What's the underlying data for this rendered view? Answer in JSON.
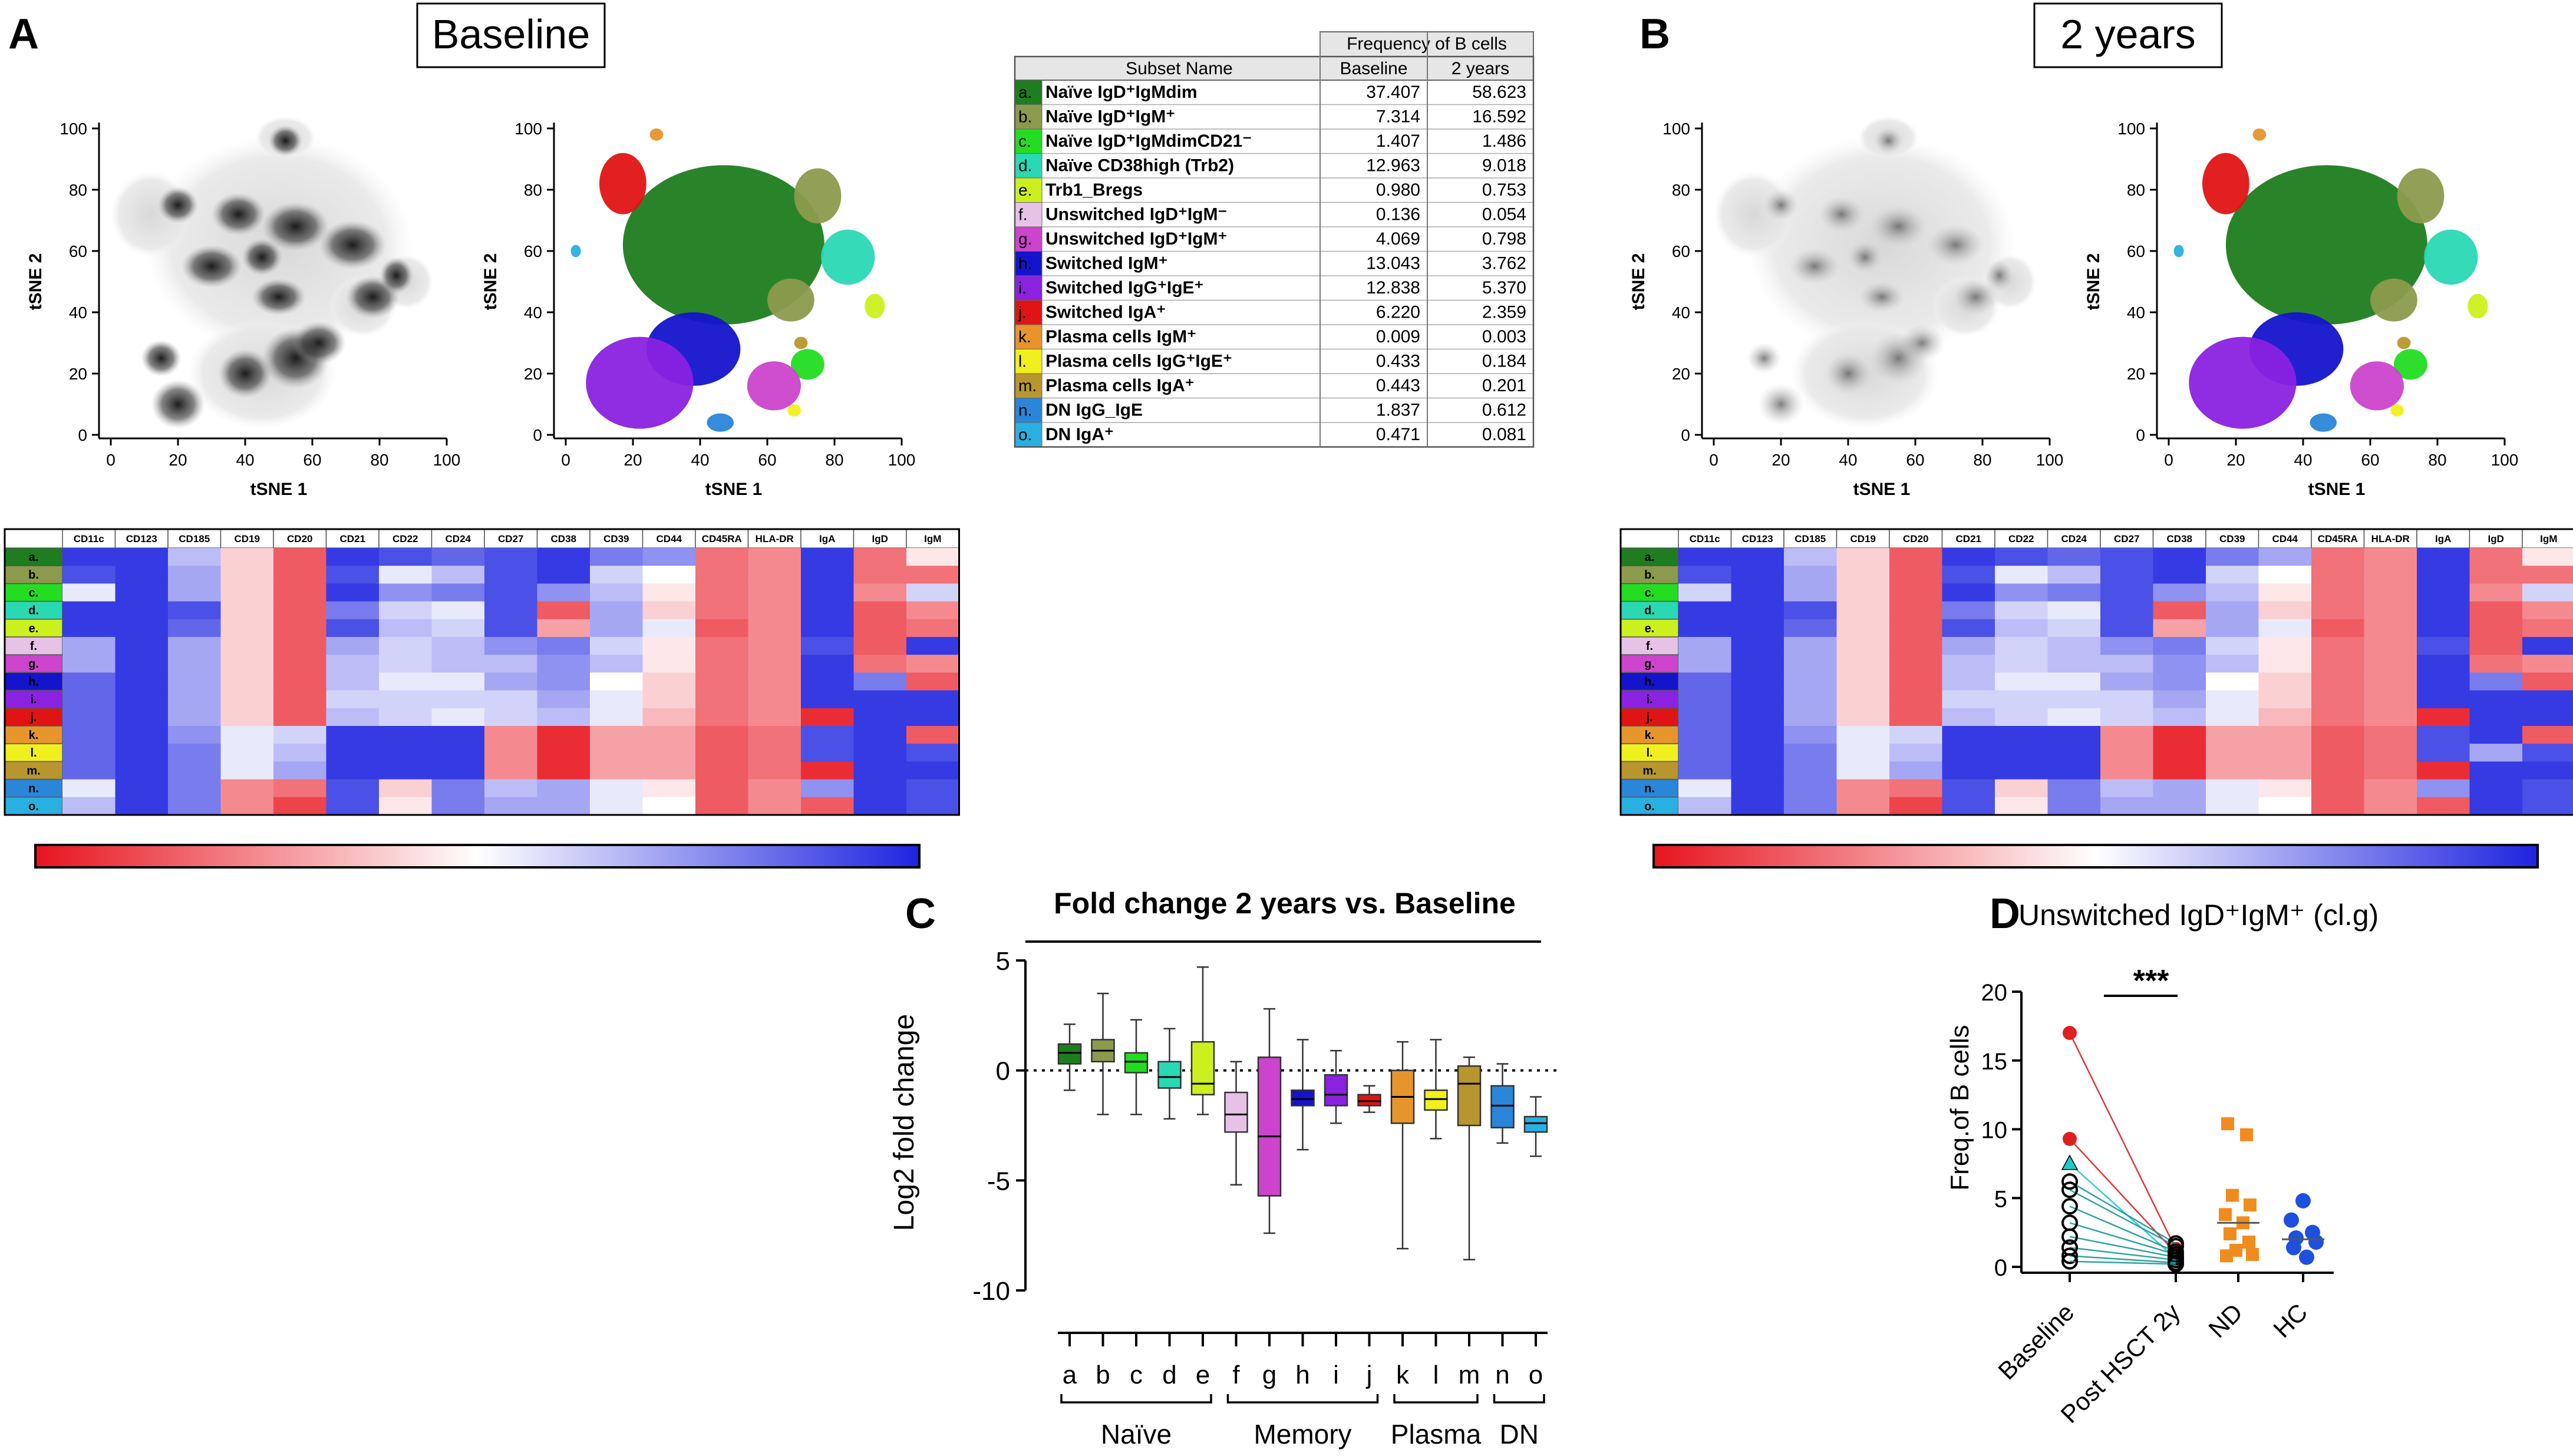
{
  "panels": {
    "A": {
      "letter": "A",
      "title": "Baseline"
    },
    "B": {
      "letter": "B",
      "title": "2 years"
    },
    "C": {
      "letter": "C"
    },
    "D": {
      "letter": "D"
    }
  },
  "tsne": {
    "xlabel": "tSNE 1",
    "ylabel": "tSNE 2",
    "ticks": [
      "0",
      "20",
      "40",
      "60",
      "80",
      "100"
    ]
  },
  "freq_table": {
    "group_header": "Frequency of B cells",
    "col_subset": "Subset Name",
    "col_baseline": "Baseline",
    "col_2y": "2 years",
    "rows": [
      {
        "code": "a.",
        "name": "Naïve IgD⁺IgMdim",
        "baseline": "37.407",
        "y2": "58.623",
        "color": "#1e7d1e"
      },
      {
        "code": "b.",
        "name": "Naïve IgD⁺IgM⁺",
        "baseline": "7.314",
        "y2": "16.592",
        "color": "#8c9a4d"
      },
      {
        "code": "c.",
        "name": "Naïve IgD⁺IgMdimCD21⁻",
        "baseline": "1.407",
        "y2": "1.486",
        "color": "#22dd22"
      },
      {
        "code": "d.",
        "name": "Naïve CD38high (Trb2)",
        "baseline": "12.963",
        "y2": "9.018",
        "color": "#2ad8b4"
      },
      {
        "code": "e.",
        "name": "Trb1_Bregs",
        "baseline": "0.980",
        "y2": "0.753",
        "color": "#ccf01e"
      },
      {
        "code": "f.",
        "name": "Unswitched IgD⁺IgM⁻",
        "baseline": "0.136",
        "y2": "0.054",
        "color": "#e6c2e6"
      },
      {
        "code": "g.",
        "name": "Unswitched IgD⁺IgM⁺",
        "baseline": "4.069",
        "y2": "0.798",
        "color": "#cc44cc"
      },
      {
        "code": "h.",
        "name": "Switched IgM⁺",
        "baseline": "13.043",
        "y2": "3.762",
        "color": "#1414cc"
      },
      {
        "code": "i.",
        "name": "Switched IgG⁺IgE⁺",
        "baseline": "12.838",
        "y2": "5.370",
        "color": "#8a22e0"
      },
      {
        "code": "j.",
        "name": "Switched IgA⁺",
        "baseline": "6.220",
        "y2": "2.359",
        "color": "#e01414"
      },
      {
        "code": "k.",
        "name": "Plasma cells IgM⁺",
        "baseline": "0.009",
        "y2": "0.003",
        "color": "#e6952a"
      },
      {
        "code": "l.",
        "name": "Plasma cells IgG⁺IgE⁺",
        "baseline": "0.433",
        "y2": "0.184",
        "color": "#f0f01e"
      },
      {
        "code": "m.",
        "name": "Plasma cells IgA⁺",
        "baseline": "0.443",
        "y2": "0.201",
        "color": "#b8962e"
      },
      {
        "code": "n.",
        "name": "DN IgG_IgE",
        "baseline": "1.837",
        "y2": "0.612",
        "color": "#2a86d8"
      },
      {
        "code": "o.",
        "name": "DN IgA⁺",
        "baseline": "0.471",
        "y2": "0.081",
        "color": "#2ab0e0"
      }
    ]
  },
  "heatmap": {
    "markers": [
      "CD11c",
      "CD123",
      "CD185",
      "CD19",
      "CD20",
      "CD21",
      "CD22",
      "CD24",
      "CD27",
      "CD38",
      "CD39",
      "CD44",
      "CD45RA",
      "HLA-DR",
      "IgA",
      "IgD",
      "IgM"
    ],
    "scale_note": "expression color scale red (high) to blue (low)",
    "baseline_values": [
      [
        0.05,
        0.05,
        0.35,
        0.6,
        0.85,
        0.05,
        0.1,
        0.15,
        0.1,
        0.05,
        0.2,
        0.25,
        0.8,
        0.75,
        0.05,
        0.8,
        0.55
      ],
      [
        0.1,
        0.05,
        0.3,
        0.6,
        0.85,
        0.1,
        0.45,
        0.35,
        0.1,
        0.05,
        0.4,
        0.5,
        0.8,
        0.75,
        0.05,
        0.8,
        0.8
      ],
      [
        0.45,
        0.05,
        0.3,
        0.6,
        0.85,
        0.05,
        0.25,
        0.2,
        0.1,
        0.25,
        0.35,
        0.55,
        0.8,
        0.75,
        0.05,
        0.75,
        0.4
      ],
      [
        0.05,
        0.05,
        0.1,
        0.6,
        0.85,
        0.2,
        0.4,
        0.45,
        0.1,
        0.85,
        0.3,
        0.6,
        0.8,
        0.75,
        0.05,
        0.85,
        0.75
      ],
      [
        0.05,
        0.05,
        0.15,
        0.6,
        0.85,
        0.1,
        0.35,
        0.4,
        0.1,
        0.7,
        0.3,
        0.45,
        0.85,
        0.75,
        0.05,
        0.85,
        0.8
      ],
      [
        0.3,
        0.05,
        0.3,
        0.6,
        0.85,
        0.3,
        0.4,
        0.35,
        0.25,
        0.2,
        0.4,
        0.55,
        0.8,
        0.75,
        0.1,
        0.85,
        0.05
      ],
      [
        0.3,
        0.05,
        0.3,
        0.6,
        0.85,
        0.35,
        0.4,
        0.35,
        0.35,
        0.25,
        0.35,
        0.55,
        0.8,
        0.75,
        0.05,
        0.8,
        0.75
      ],
      [
        0.15,
        0.05,
        0.3,
        0.6,
        0.85,
        0.35,
        0.45,
        0.45,
        0.3,
        0.25,
        0.5,
        0.6,
        0.8,
        0.75,
        0.05,
        0.2,
        0.85
      ],
      [
        0.15,
        0.05,
        0.3,
        0.6,
        0.85,
        0.4,
        0.4,
        0.4,
        0.4,
        0.3,
        0.45,
        0.6,
        0.8,
        0.75,
        0.05,
        0.05,
        0.05
      ],
      [
        0.15,
        0.05,
        0.3,
        0.6,
        0.85,
        0.35,
        0.4,
        0.45,
        0.4,
        0.35,
        0.45,
        0.65,
        0.8,
        0.75,
        0.95,
        0.05,
        0.05
      ],
      [
        0.15,
        0.05,
        0.25,
        0.45,
        0.4,
        0.05,
        0.05,
        0.05,
        0.75,
        0.95,
        0.7,
        0.7,
        0.85,
        0.8,
        0.1,
        0.05,
        0.85
      ],
      [
        0.15,
        0.05,
        0.2,
        0.45,
        0.35,
        0.05,
        0.05,
        0.05,
        0.75,
        0.95,
        0.7,
        0.7,
        0.85,
        0.8,
        0.1,
        0.05,
        0.1
      ],
      [
        0.15,
        0.05,
        0.2,
        0.45,
        0.3,
        0.05,
        0.05,
        0.05,
        0.75,
        0.95,
        0.7,
        0.7,
        0.85,
        0.8,
        0.95,
        0.05,
        0.05
      ],
      [
        0.45,
        0.05,
        0.2,
        0.75,
        0.8,
        0.1,
        0.6,
        0.2,
        0.35,
        0.3,
        0.45,
        0.55,
        0.85,
        0.75,
        0.25,
        0.05,
        0.1
      ],
      [
        0.35,
        0.05,
        0.2,
        0.75,
        0.9,
        0.1,
        0.55,
        0.2,
        0.3,
        0.3,
        0.45,
        0.5,
        0.85,
        0.75,
        0.85,
        0.05,
        0.1
      ]
    ],
    "year2_values": [
      [
        0.05,
        0.05,
        0.35,
        0.6,
        0.85,
        0.05,
        0.1,
        0.15,
        0.1,
        0.05,
        0.2,
        0.3,
        0.8,
        0.75,
        0.05,
        0.8,
        0.55
      ],
      [
        0.1,
        0.05,
        0.3,
        0.6,
        0.85,
        0.1,
        0.45,
        0.35,
        0.1,
        0.05,
        0.4,
        0.5,
        0.8,
        0.75,
        0.05,
        0.8,
        0.8
      ],
      [
        0.4,
        0.05,
        0.3,
        0.6,
        0.85,
        0.05,
        0.25,
        0.2,
        0.1,
        0.25,
        0.35,
        0.55,
        0.8,
        0.75,
        0.05,
        0.75,
        0.4
      ],
      [
        0.05,
        0.05,
        0.1,
        0.6,
        0.85,
        0.2,
        0.4,
        0.45,
        0.1,
        0.85,
        0.3,
        0.6,
        0.8,
        0.75,
        0.05,
        0.85,
        0.75
      ],
      [
        0.05,
        0.05,
        0.15,
        0.6,
        0.85,
        0.1,
        0.35,
        0.4,
        0.1,
        0.7,
        0.3,
        0.45,
        0.85,
        0.75,
        0.05,
        0.85,
        0.8
      ],
      [
        0.3,
        0.05,
        0.3,
        0.6,
        0.85,
        0.3,
        0.4,
        0.35,
        0.25,
        0.2,
        0.4,
        0.55,
        0.8,
        0.75,
        0.1,
        0.85,
        0.05
      ],
      [
        0.3,
        0.05,
        0.3,
        0.6,
        0.85,
        0.35,
        0.4,
        0.35,
        0.35,
        0.25,
        0.35,
        0.55,
        0.8,
        0.75,
        0.05,
        0.8,
        0.75
      ],
      [
        0.15,
        0.05,
        0.3,
        0.6,
        0.85,
        0.35,
        0.45,
        0.45,
        0.3,
        0.25,
        0.5,
        0.6,
        0.8,
        0.75,
        0.05,
        0.2,
        0.85
      ],
      [
        0.15,
        0.05,
        0.3,
        0.6,
        0.85,
        0.4,
        0.4,
        0.4,
        0.4,
        0.3,
        0.45,
        0.6,
        0.8,
        0.75,
        0.05,
        0.05,
        0.05
      ],
      [
        0.15,
        0.05,
        0.3,
        0.6,
        0.85,
        0.35,
        0.4,
        0.45,
        0.4,
        0.35,
        0.45,
        0.65,
        0.8,
        0.75,
        0.95,
        0.05,
        0.05
      ],
      [
        0.15,
        0.05,
        0.25,
        0.45,
        0.4,
        0.05,
        0.05,
        0.05,
        0.75,
        0.95,
        0.7,
        0.7,
        0.85,
        0.8,
        0.1,
        0.05,
        0.85
      ],
      [
        0.15,
        0.05,
        0.2,
        0.45,
        0.35,
        0.05,
        0.05,
        0.05,
        0.75,
        0.95,
        0.7,
        0.7,
        0.85,
        0.8,
        0.1,
        0.3,
        0.1
      ],
      [
        0.15,
        0.05,
        0.2,
        0.45,
        0.3,
        0.05,
        0.05,
        0.05,
        0.75,
        0.95,
        0.7,
        0.7,
        0.85,
        0.8,
        0.95,
        0.05,
        0.05
      ],
      [
        0.45,
        0.05,
        0.2,
        0.75,
        0.8,
        0.1,
        0.6,
        0.2,
        0.35,
        0.3,
        0.45,
        0.55,
        0.85,
        0.75,
        0.25,
        0.05,
        0.1
      ],
      [
        0.35,
        0.05,
        0.2,
        0.75,
        0.9,
        0.1,
        0.55,
        0.2,
        0.3,
        0.3,
        0.45,
        0.5,
        0.85,
        0.75,
        0.85,
        0.05,
        0.1
      ]
    ]
  },
  "chart_data": [
    {
      "type": "box",
      "title": "Fold change 2 years vs. Baseline",
      "ylabel": "Log2 fold change",
      "ylim": [
        -10,
        5
      ],
      "yticks": [
        5,
        0,
        -5,
        -10
      ],
      "reference_line": 0,
      "categories": [
        "a",
        "b",
        "c",
        "d",
        "e",
        "f",
        "g",
        "h",
        "i",
        "j",
        "k",
        "l",
        "m",
        "n",
        "o"
      ],
      "groups": [
        {
          "name": "Naïve",
          "from": 0,
          "to": 4
        },
        {
          "name": "Memory",
          "from": 5,
          "to": 9
        },
        {
          "name": "Plasma",
          "from": 10,
          "to": 12
        },
        {
          "name": "DN",
          "from": 13,
          "to": 14
        }
      ],
      "boxes": [
        {
          "cat": "a",
          "min": -0.9,
          "q1": 0.3,
          "median": 0.8,
          "q3": 1.2,
          "max": 2.1
        },
        {
          "cat": "b",
          "min": -2.0,
          "q1": 0.4,
          "median": 0.9,
          "q3": 1.4,
          "max": 3.5
        },
        {
          "cat": "c",
          "min": -2.0,
          "q1": -0.1,
          "median": 0.4,
          "q3": 0.8,
          "max": 2.3
        },
        {
          "cat": "d",
          "min": -2.2,
          "q1": -0.8,
          "median": -0.3,
          "q3": 0.4,
          "max": 1.9
        },
        {
          "cat": "e",
          "min": -2.0,
          "q1": -1.1,
          "median": -0.6,
          "q3": 1.3,
          "max": 4.7
        },
        {
          "cat": "f",
          "min": -5.2,
          "q1": -2.8,
          "median": -2.0,
          "q3": -1.0,
          "max": 0.4
        },
        {
          "cat": "g",
          "min": -7.4,
          "q1": -5.7,
          "median": -3.0,
          "q3": 0.6,
          "max": 2.8
        },
        {
          "cat": "h",
          "min": -3.6,
          "q1": -1.6,
          "median": -1.3,
          "q3": -0.9,
          "max": 1.4
        },
        {
          "cat": "i",
          "min": -2.4,
          "q1": -1.6,
          "median": -1.1,
          "q3": -0.2,
          "max": 0.9
        },
        {
          "cat": "j",
          "min": -1.9,
          "q1": -1.6,
          "median": -1.4,
          "q3": -1.1,
          "max": -0.7
        },
        {
          "cat": "k",
          "min": -8.1,
          "q1": -2.4,
          "median": -1.2,
          "q3": 0.0,
          "max": 1.3
        },
        {
          "cat": "l",
          "min": -3.1,
          "q1": -1.8,
          "median": -1.3,
          "q3": -0.9,
          "max": 1.4
        },
        {
          "cat": "m",
          "min": -8.6,
          "q1": -2.5,
          "median": -0.6,
          "q3": 0.2,
          "max": 0.6
        },
        {
          "cat": "n",
          "min": -3.3,
          "q1": -2.6,
          "median": -1.6,
          "q3": -0.7,
          "max": 0.3
        },
        {
          "cat": "o",
          "min": -3.9,
          "q1": -2.8,
          "median": -2.4,
          "q3": -2.1,
          "max": -1.2
        }
      ]
    },
    {
      "type": "scatter",
      "title": "Unswitched IgD⁺IgM⁺ (cl.g)",
      "ylabel": "Freq.of B cells",
      "ylim": [
        0,
        20
      ],
      "yticks": [
        0,
        5,
        10,
        15,
        20
      ],
      "categories": [
        "Baseline",
        "Post HSCT 2y",
        "ND",
        "HC"
      ],
      "significance": "***",
      "pairs": [
        {
          "baseline": 17.0,
          "post": 1.3,
          "color": "#e02020",
          "marker": "filled-circle"
        },
        {
          "baseline": 9.3,
          "post": 1.0,
          "color": "#e02020",
          "marker": "filled-circle"
        },
        {
          "baseline": 7.5,
          "post": 0.6,
          "color": "#20c8c8",
          "marker": "filled-triangle"
        },
        {
          "baseline": 6.2,
          "post": 1.7,
          "color": "#000000",
          "marker": "open-circle"
        },
        {
          "baseline": 5.6,
          "post": 1.5,
          "color": "#000000",
          "marker": "open-circle"
        },
        {
          "baseline": 4.4,
          "post": 1.1,
          "color": "#000000",
          "marker": "open-circle"
        },
        {
          "baseline": 3.2,
          "post": 0.9,
          "color": "#000000",
          "marker": "open-circle"
        },
        {
          "baseline": 2.2,
          "post": 0.7,
          "color": "#000000",
          "marker": "open-circle"
        },
        {
          "baseline": 1.4,
          "post": 0.5,
          "color": "#000000",
          "marker": "open-circle"
        },
        {
          "baseline": 0.8,
          "post": 0.3,
          "color": "#000000",
          "marker": "open-circle"
        },
        {
          "baseline": 0.4,
          "post": 0.2,
          "color": "#000000",
          "marker": "open-circle"
        }
      ],
      "nd_values": [
        10.4,
        9.6,
        5.2,
        4.5,
        3.8,
        3.2,
        2.4,
        1.8,
        1.2,
        0.9,
        0.8
      ],
      "nd_median": 3.2,
      "nd_color": "#f08c1e",
      "hc_values": [
        4.8,
        3.4,
        2.5,
        2.1,
        1.8,
        1.4,
        0.7
      ],
      "hc_median": 2.0,
      "hc_color": "#1e50e0"
    }
  ]
}
